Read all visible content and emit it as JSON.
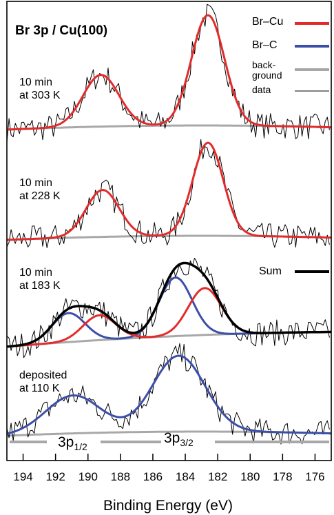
{
  "chart_data": {
    "type": "line",
    "title": "Br 3p / Cu(100)",
    "xlabel": "Binding Energy (eV)",
    "x_range": [
      195,
      175
    ],
    "x_ticks": [
      194,
      192,
      190,
      188,
      186,
      184,
      182,
      180,
      178,
      176
    ],
    "legend": [
      {
        "name": "Br–Cu",
        "color": "#e32b2b"
      },
      {
        "name": "Br–C",
        "color": "#3b4fa8"
      },
      {
        "name": "back-ground",
        "line1": "back-",
        "line2": "ground",
        "color": "#a8a8a8"
      },
      {
        "name": "data",
        "color": "#000000"
      },
      {
        "name": "Sum",
        "color": "#000000"
      }
    ],
    "peak_labels": [
      {
        "base": "3p",
        "sub": "1/2"
      },
      {
        "base": "3p",
        "sub": "3/2"
      }
    ],
    "spectra": [
      {
        "label1": "10 min",
        "label2": "at 303 K",
        "components": [
          {
            "name": "Br–Cu",
            "peaks": [
              {
                "center": 189.2,
                "height": 75,
                "fwhm": 2.6
              },
              {
                "center": 182.6,
                "height": 160,
                "fwhm": 2.4
              }
            ]
          }
        ]
      },
      {
        "label1": "10 min",
        "label2": "at 228 K",
        "components": [
          {
            "name": "Br–Cu",
            "peaks": [
              {
                "center": 189.1,
                "height": 68,
                "fwhm": 2.4
              },
              {
                "center": 182.6,
                "height": 135,
                "fwhm": 2.2
              }
            ]
          }
        ]
      },
      {
        "label1": "10 min",
        "label2": "at 183 K",
        "components": [
          {
            "name": "Br–C",
            "peaks": [
              {
                "center": 191.2,
                "height": 42,
                "fwhm": 2.4
              },
              {
                "center": 184.6,
                "height": 85,
                "fwhm": 2.4
              }
            ]
          },
          {
            "name": "Br–Cu",
            "peaks": [
              {
                "center": 189.3,
                "height": 36,
                "fwhm": 2.4
              },
              {
                "center": 182.8,
                "height": 68,
                "fwhm": 2.4
              }
            ]
          }
        ]
      },
      {
        "label1": "deposited",
        "label2": "at 110 K",
        "components": [
          {
            "name": "Br–C",
            "peaks": [
              {
                "center": 190.9,
                "height": 55,
                "fwhm": 4.0
              },
              {
                "center": 184.4,
                "height": 110,
                "fwhm": 3.8
              }
            ]
          }
        ]
      }
    ]
  }
}
